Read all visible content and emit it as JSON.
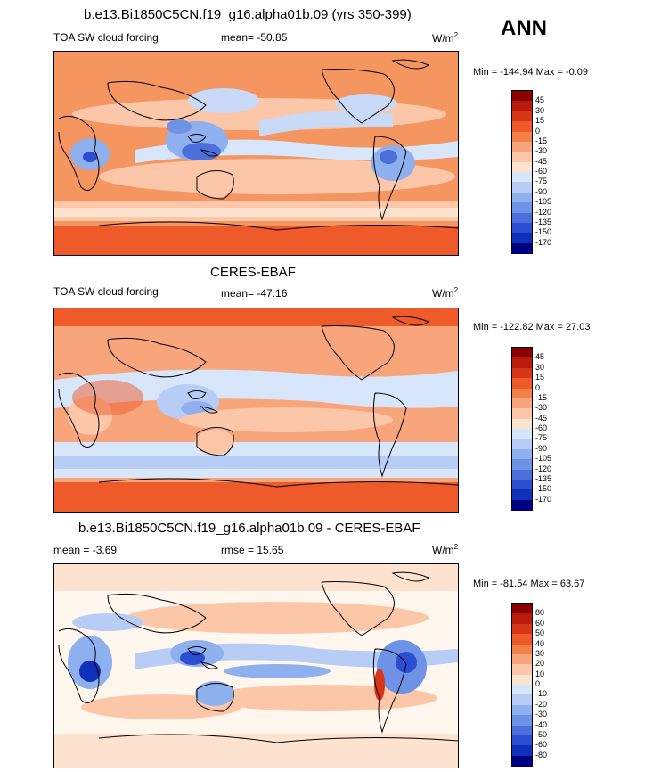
{
  "season_label": "ANN",
  "panels": [
    {
      "title": "b.e13.Bi1850C5CN.f19_g16.alpha01b.09 (yrs 350-399)",
      "left_label": "TOA SW cloud forcing",
      "center_label": "mean= -50.85",
      "units": "W/m",
      "units_sup": "2",
      "minmax": "Min = -144.94 Max =  -0.09",
      "colorbar_ticks": [
        "45",
        "30",
        "15",
        "0",
        "-15",
        "-30",
        "-45",
        "-60",
        "-75",
        "-90",
        "-105",
        "-120",
        "-135",
        "-150",
        "-170"
      ]
    },
    {
      "title": "CERES-EBAF",
      "left_label": "TOA SW cloud forcing",
      "center_label": "mean= -47.16",
      "units": "W/m",
      "units_sup": "2",
      "minmax": "Min = -122.82 Max =  27.03",
      "colorbar_ticks": [
        "45",
        "30",
        "15",
        "0",
        "-15",
        "-30",
        "-45",
        "-60",
        "-75",
        "-90",
        "-105",
        "-120",
        "-135",
        "-150",
        "-170"
      ]
    },
    {
      "title": "b.e13.Bi1850C5CN.f19_g16.alpha01b.09 - CERES-EBAF",
      "left_label": "mean =  -3.69",
      "center_label": "rmse =  15.65",
      "units": "W/m",
      "units_sup": "2",
      "minmax": "Min = -81.54 Max =  63.67",
      "colorbar_ticks": [
        "80",
        "60",
        "50",
        "40",
        "30",
        "20",
        "10",
        "0",
        "-10",
        "-20",
        "-30",
        "-40",
        "-50",
        "-60",
        "-80"
      ]
    }
  ],
  "colors": {
    "colorbar": [
      "#8b0000",
      "#b81a0c",
      "#d83418",
      "#ee5a2a",
      "#f5814a",
      "#f8a57c",
      "#fbc7a8",
      "#fde2d0",
      "#fff6ee",
      "#d8e6fb",
      "#b7cdf6",
      "#8fb0ee",
      "#6e92e6",
      "#4b6fdb",
      "#2b4fd0",
      "#0f30bb",
      "#00007f"
    ],
    "ocean_warm": "#f5955f",
    "mid_pink": "#f9c0a4",
    "light_blue": "#c9daf8",
    "blue": "#6f93e6",
    "deep_blue": "#2f55d4",
    "strong_red": "#ee5a2a"
  }
}
